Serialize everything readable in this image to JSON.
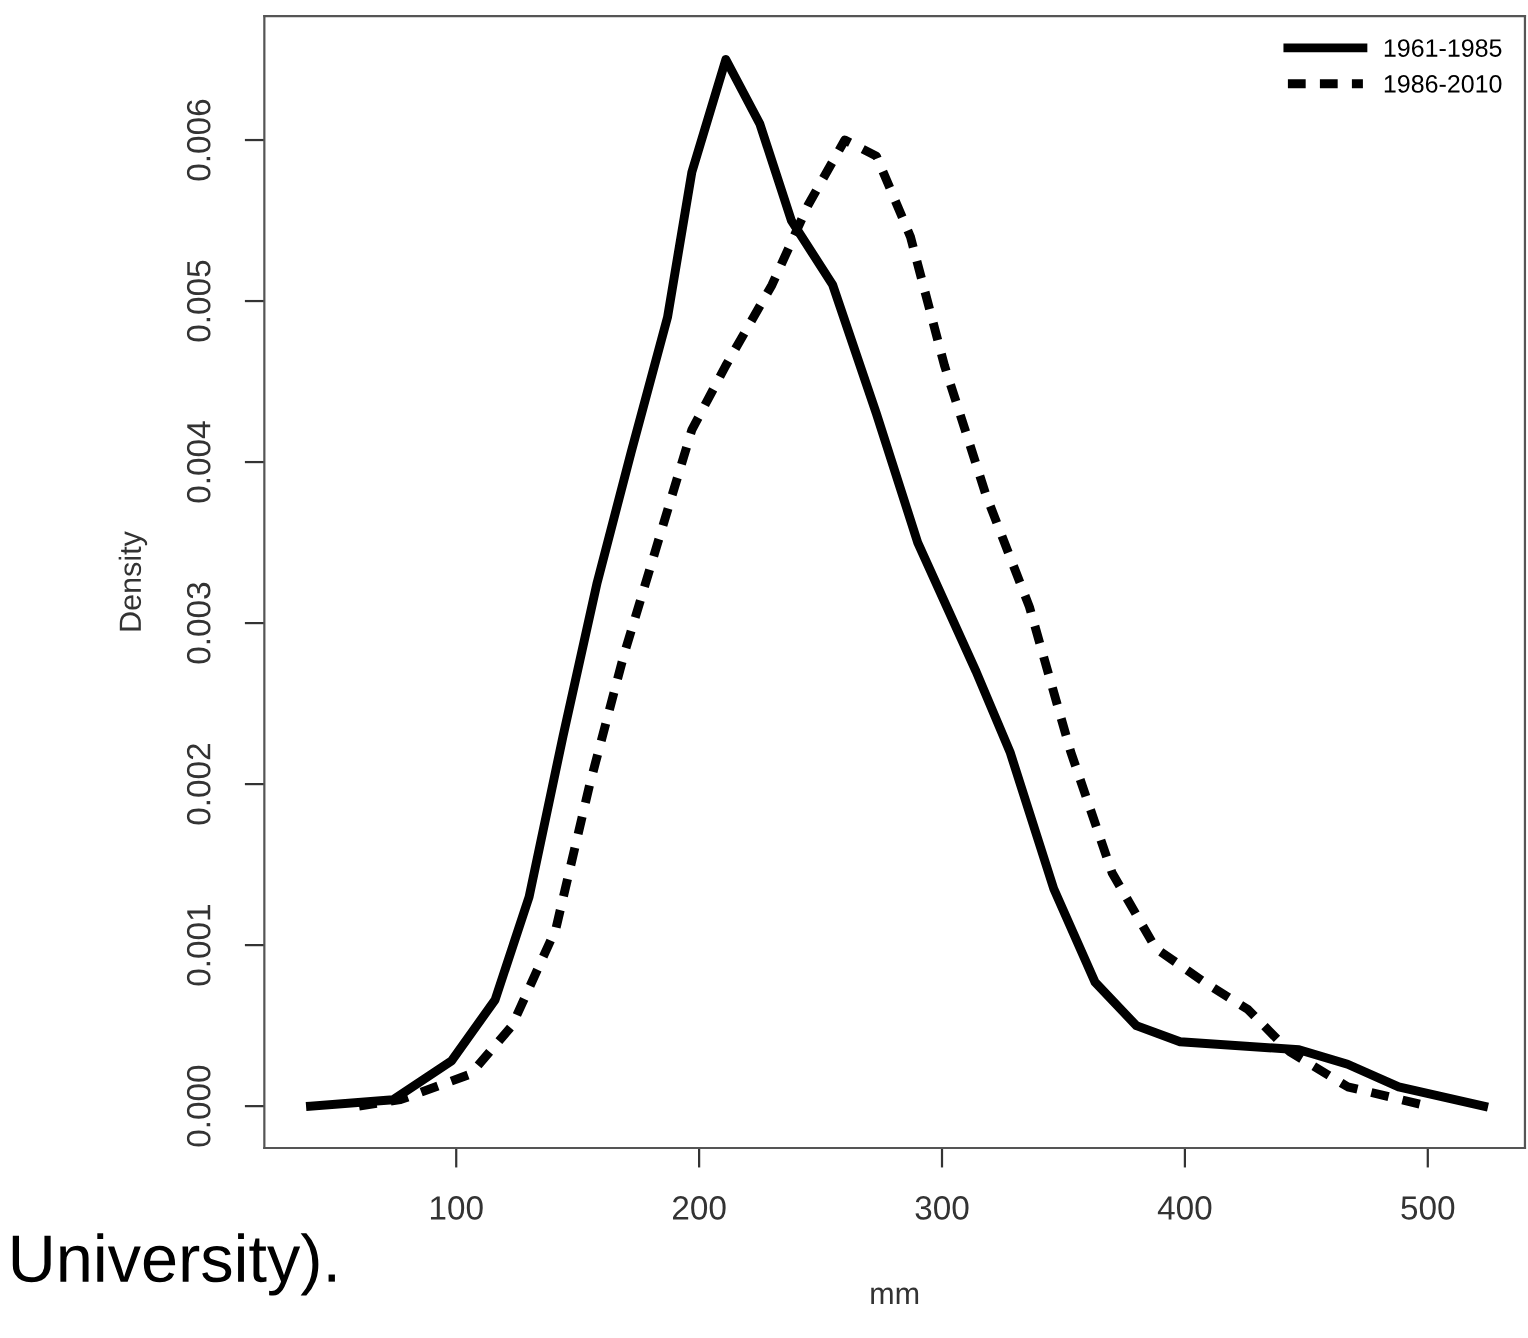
{
  "chart_data": {
    "type": "line",
    "xlabel": "mm",
    "ylabel": "Density",
    "xlim": [
      21,
      540
    ],
    "ylim": [
      -0.00026,
      0.00677
    ],
    "xticks": [
      100,
      200,
      300,
      400,
      500
    ],
    "yticks": [
      {
        "value": 0,
        "label": "0.000"
      },
      0.001,
      0.002,
      0.003,
      0.004,
      0.005,
      0.006
    ],
    "grid": false,
    "legend": "top right",
    "annotations": [
      "University)."
    ],
    "series": [
      {
        "name": "1961-1985",
        "color": "#000000",
        "line_style": "solid",
        "x": [
          40,
          74,
          98,
          116,
          130,
          144,
          158,
          172,
          187,
          197,
          211,
          225,
          238,
          255,
          273,
          290,
          314,
          328,
          346,
          363,
          380,
          398,
          447,
          467,
          488,
          523
        ],
        "values": [
          0,
          4e-05,
          0.00028,
          0.00066,
          0.0013,
          0.0023,
          0.00325,
          0.00406,
          0.0049,
          0.0058,
          0.0065,
          0.0061,
          0.0055,
          0.0051,
          0.0043,
          0.0035,
          0.0027,
          0.0022,
          0.00135,
          0.00077,
          0.0005,
          0.0004,
          0.00035,
          0.00026,
          0.00012,
          0
        ]
      },
      {
        "name": "1986-2010",
        "color": "#000000",
        "line_style": "dashed",
        "x": [
          60,
          77,
          106,
          123,
          141,
          155,
          169,
          183,
          197,
          211,
          230,
          245,
          260,
          273,
          287,
          301,
          318,
          336,
          353,
          370,
          388,
          408,
          426,
          443,
          467,
          500
        ],
        "values": [
          0,
          4e-05,
          0.0002,
          0.0005,
          0.0011,
          0.002,
          0.0028,
          0.0035,
          0.0042,
          0.0046,
          0.0051,
          0.0056,
          0.006,
          0.0059,
          0.0054,
          0.0046,
          0.0038,
          0.0031,
          0.0022,
          0.00145,
          0.00098,
          0.00077,
          0.0006,
          0.00034,
          0.00012,
          0
        ]
      }
    ]
  }
}
